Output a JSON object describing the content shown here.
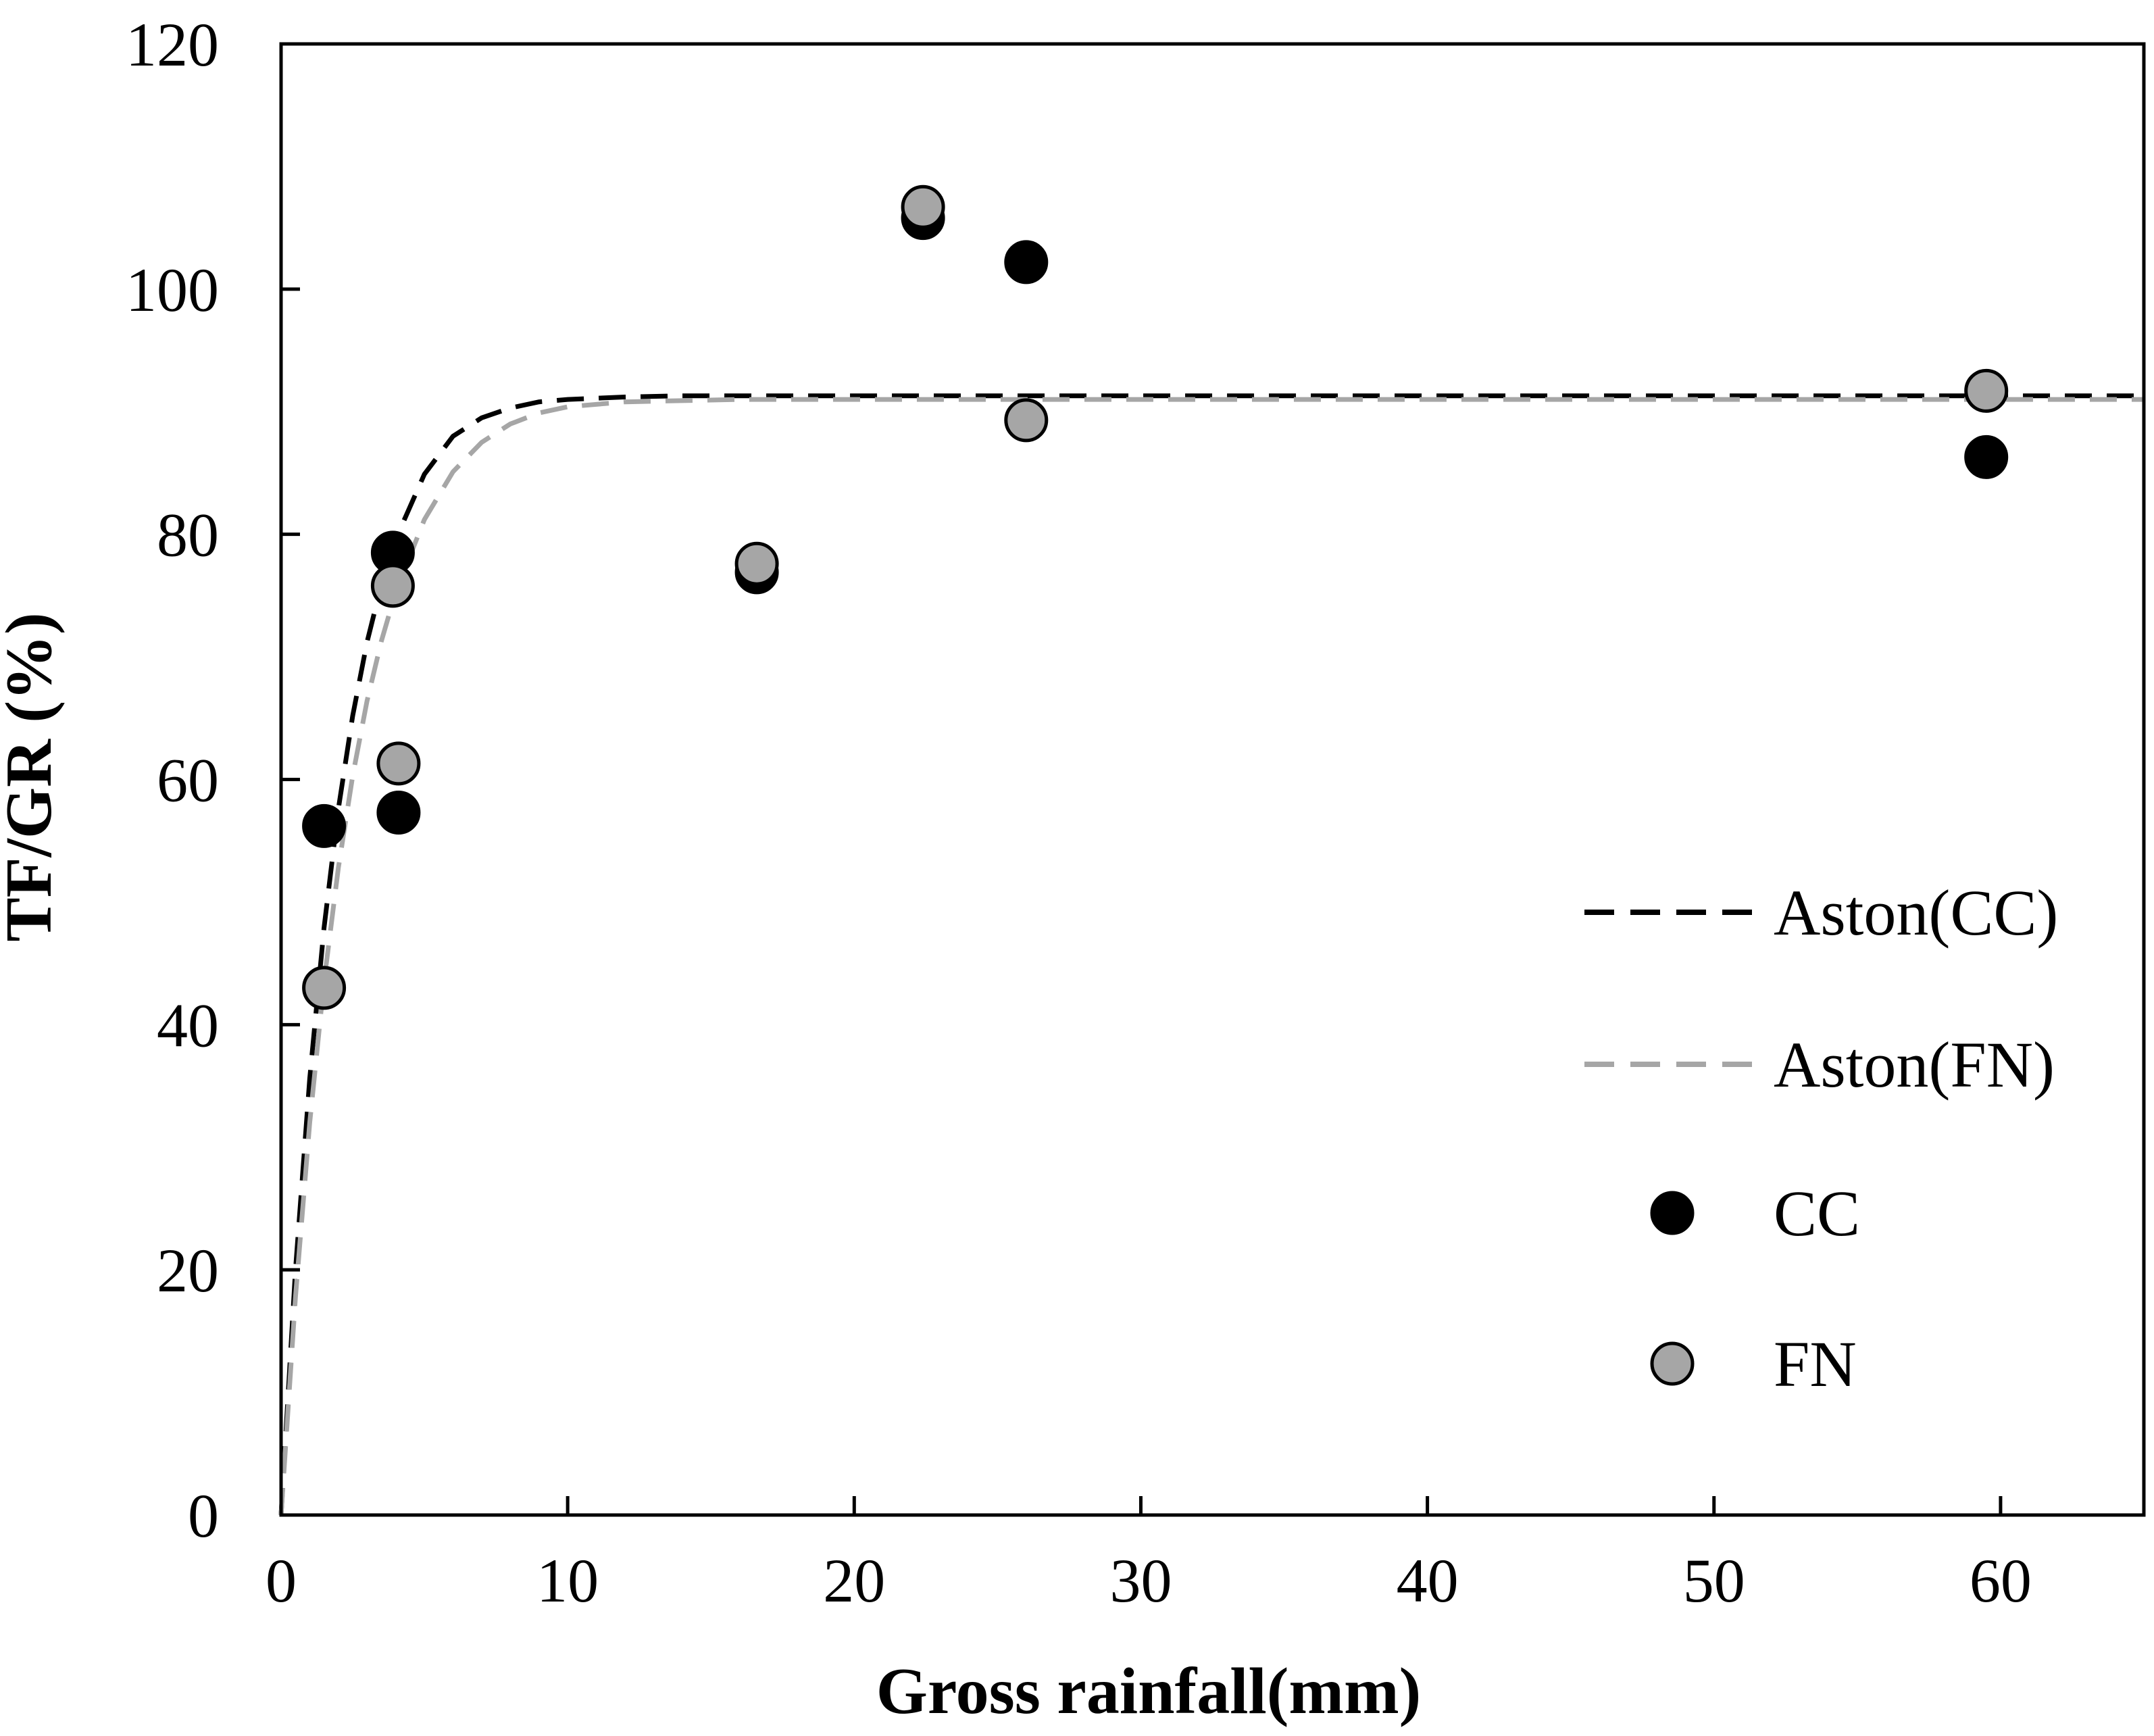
{
  "colors": {
    "cc_marker": "#000000",
    "fn_marker": "#a6a6a6",
    "cc_line": "#000000",
    "fn_line": "#a6a6a6",
    "axis": "#000000"
  },
  "chart_data": {
    "type": "scatter",
    "title": "",
    "xlabel": "Gross rainfall(mm)",
    "ylabel": "TF/GR (%)",
    "xlim": [
      0,
      65
    ],
    "ylim": [
      0,
      120
    ],
    "xticks": [
      0,
      10,
      20,
      30,
      40,
      50,
      60
    ],
    "yticks": [
      0,
      20,
      40,
      60,
      80,
      100,
      120
    ],
    "grid": false,
    "legend_position": "right",
    "series": [
      {
        "name": "CC",
        "kind": "points",
        "x": [
          1.5,
          3.9,
          4.1,
          16.6,
          22.4,
          26.0,
          59.5
        ],
        "y": [
          56.2,
          78.5,
          57.3,
          76.9,
          105.8,
          102.2,
          86.3
        ]
      },
      {
        "name": "FN",
        "kind": "points",
        "x": [
          1.5,
          3.9,
          4.1,
          16.6,
          22.4,
          26.0,
          59.5
        ],
        "y": [
          43.0,
          75.8,
          61.3,
          77.6,
          106.7,
          89.3,
          91.7
        ]
      },
      {
        "name": "Aston(CC)",
        "kind": "fit-line",
        "x": [
          0,
          0.5,
          1,
          1.5,
          2,
          2.5,
          3,
          3.5,
          4,
          5,
          6,
          7,
          8,
          9,
          10,
          12,
          14,
          16,
          20,
          30,
          40,
          50,
          60,
          65
        ],
        "y": [
          0,
          19.9,
          35.6,
          47.9,
          57.6,
          65.2,
          71.2,
          75.9,
          79.6,
          84.9,
          88.0,
          89.5,
          90.3,
          90.8,
          91.0,
          91.2,
          91.3,
          91.3,
          91.3,
          91.3,
          91.3,
          91.3,
          91.3,
          91.3
        ]
      },
      {
        "name": "Aston(FN)",
        "kind": "fit-line",
        "x": [
          0,
          0.5,
          1,
          1.5,
          2,
          2.5,
          3,
          3.5,
          4,
          5,
          6,
          7,
          8,
          9,
          10,
          12,
          14,
          16,
          20,
          30,
          40,
          50,
          60,
          65
        ],
        "y": [
          0,
          17.7,
          32.0,
          43.5,
          52.8,
          60.3,
          66.4,
          71.3,
          75.3,
          81.2,
          85.1,
          87.5,
          89.0,
          89.9,
          90.4,
          90.8,
          90.9,
          91.0,
          91.0,
          91.0,
          91.0,
          91.0,
          91.0,
          91.0
        ]
      }
    ],
    "legend": [
      {
        "label": "Aston(CC)",
        "symbol": "dashed-line",
        "series": "Aston(CC)"
      },
      {
        "label": "Aston(FN)",
        "symbol": "dashed-line",
        "series": "Aston(FN)"
      },
      {
        "label": "CC",
        "symbol": "filled-circle",
        "series": "CC"
      },
      {
        "label": "FN",
        "symbol": "filled-circle",
        "series": "FN"
      }
    ]
  }
}
